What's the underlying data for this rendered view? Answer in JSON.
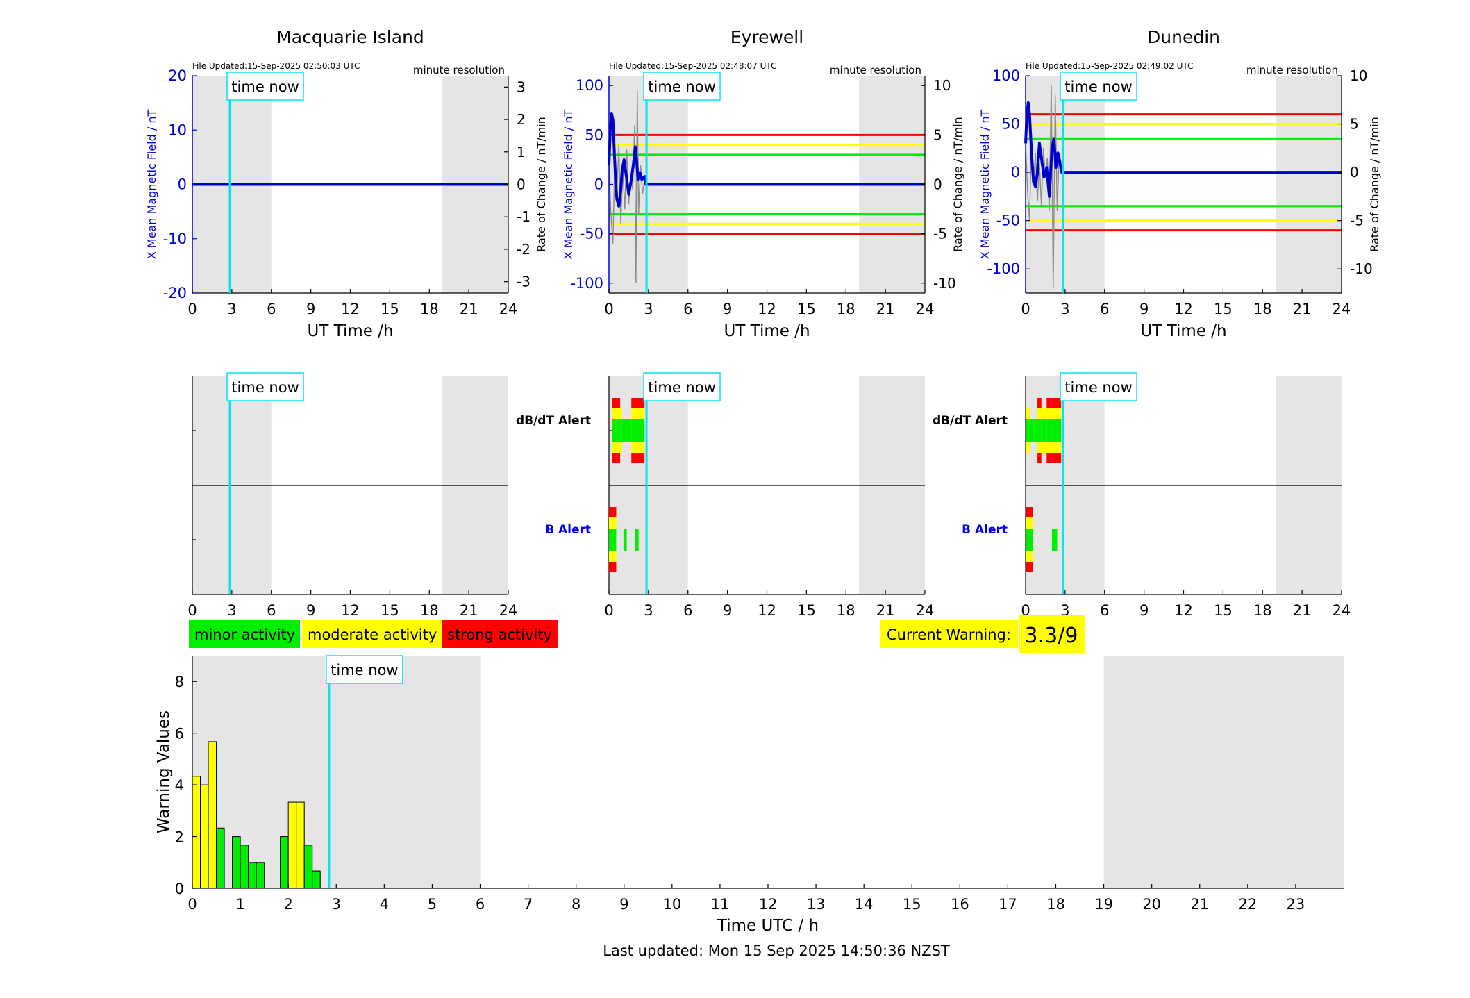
{
  "page": {
    "footer": "Last updated: Mon 15 Sep 2025 14:50:36 NZST",
    "now_label": "time now",
    "colors": {
      "minor": "#00ee00",
      "moderate": "#ffff00",
      "strong": "#ff0000",
      "field": "#0000cc",
      "night": "#e5e5e5",
      "now": "#00e5ee",
      "grey": "#8a8a8a"
    }
  },
  "legend": {
    "items": [
      {
        "label": "minor activity",
        "color": "#00ee00"
      },
      {
        "label": "moderate activity",
        "color": "#ffff00"
      },
      {
        "label": "strong activity",
        "color": "#ff0000"
      }
    ]
  },
  "current_warning": {
    "label": "Current Warning:",
    "value": "3.3/9"
  },
  "stations": [
    {
      "name": "Macquarie Island",
      "file_updated": "File Updated:15-Sep-2025 02:50:03 UTC",
      "resolution": "minute resolution",
      "ylabel_left": "X Mean Magnetic Field / nT",
      "ylabel_right": "Rate of Change / nT/min",
      "xlabel": "UT Time /h",
      "ylim_left": [
        -20,
        20
      ],
      "yticks_left": [
        -20,
        -10,
        0,
        10,
        20
      ],
      "ylim_right": [
        -3.35,
        3.35
      ],
      "yticks_right": [
        -3,
        -2,
        -1,
        0,
        1,
        2,
        3
      ],
      "thresholds": [],
      "field_trace": [
        [
          0,
          0
        ],
        [
          24,
          0
        ]
      ],
      "rate_trace": [],
      "dbdt_alert": [],
      "b_alert": []
    },
    {
      "name": "Eyrewell",
      "file_updated": "File Updated:15-Sep-2025 02:48:07 UTC",
      "resolution": "minute resolution",
      "ylabel_left": "X Mean Magnetic Field / nT",
      "ylabel_right": "Rate of Change / nT/min",
      "xlabel": "UT Time /h",
      "ylim_left": [
        -110,
        110
      ],
      "yticks_left": [
        -100,
        -50,
        0,
        50,
        100
      ],
      "ylim_right": [
        -11,
        11
      ],
      "yticks_right": [
        -10,
        -5,
        0,
        5,
        10
      ],
      "thresholds": [
        {
          "value": 50,
          "color": "#ff0000"
        },
        {
          "value": 40,
          "color": "#ffff00"
        },
        {
          "value": 30,
          "color": "#00ee00"
        },
        {
          "value": -30,
          "color": "#00ee00"
        },
        {
          "value": -40,
          "color": "#ffff00"
        },
        {
          "value": -50,
          "color": "#ff0000"
        }
      ],
      "field_trace": [
        [
          0,
          20
        ],
        [
          0.1,
          55
        ],
        [
          0.2,
          72
        ],
        [
          0.3,
          65
        ],
        [
          0.4,
          35
        ],
        [
          0.5,
          5
        ],
        [
          0.6,
          -15
        ],
        [
          0.75,
          -22
        ],
        [
          0.9,
          -5
        ],
        [
          1.0,
          15
        ],
        [
          1.15,
          25
        ],
        [
          1.3,
          10
        ],
        [
          1.5,
          -10
        ],
        [
          1.7,
          5
        ],
        [
          1.85,
          20
        ],
        [
          2.0,
          38
        ],
        [
          2.1,
          25
        ],
        [
          2.2,
          5
        ],
        [
          2.35,
          12
        ],
        [
          2.5,
          5
        ],
        [
          2.7,
          8
        ],
        [
          2.8,
          0
        ],
        [
          24,
          0
        ]
      ],
      "rate_trace": [
        [
          0,
          20
        ],
        [
          0.15,
          -30
        ],
        [
          0.3,
          -60
        ],
        [
          0.45,
          30
        ],
        [
          0.6,
          -10
        ],
        [
          0.75,
          40
        ],
        [
          0.9,
          -40
        ],
        [
          1.05,
          15
        ],
        [
          1.2,
          -25
        ],
        [
          1.35,
          35
        ],
        [
          1.5,
          -20
        ],
        [
          1.65,
          10
        ],
        [
          1.8,
          -5
        ],
        [
          1.95,
          60
        ],
        [
          2.05,
          -100
        ],
        [
          2.15,
          95
        ],
        [
          2.25,
          -30
        ],
        [
          2.4,
          20
        ],
        [
          2.55,
          -10
        ],
        [
          2.7,
          5
        ]
      ],
      "dbdt_alert": [
        {
          "start": 0.25,
          "end": 0.55,
          "level": 3
        },
        {
          "start": 0.55,
          "end": 0.85,
          "level": 3
        },
        {
          "start": 0.85,
          "end": 1.0,
          "level": 2
        },
        {
          "start": 1.0,
          "end": 1.7,
          "level": 1
        },
        {
          "start": 1.7,
          "end": 2.0,
          "level": 3
        },
        {
          "start": 2.0,
          "end": 2.7,
          "level": 3
        }
      ],
      "b_alert": [
        {
          "start": 0.0,
          "end": 0.55,
          "level": 3
        },
        {
          "start": 1.1,
          "end": 1.35,
          "level": 1
        },
        {
          "start": 2.0,
          "end": 2.25,
          "level": 1
        }
      ]
    },
    {
      "name": "Dunedin",
      "file_updated": "File Updated:15-Sep-2025 02:49:02 UTC",
      "resolution": "minute resolution",
      "ylabel_left": "X Mean Magnetic Field / nT",
      "ylabel_right": "Rate of Change / nT/min",
      "xlabel": "UT Time /h",
      "ylim_left": [
        -125,
        100
      ],
      "yticks_left": [
        -100,
        -50,
        0,
        50,
        100
      ],
      "ylim_right": [
        -12.5,
        10
      ],
      "yticks_right": [
        -10,
        -5,
        0,
        5,
        10
      ],
      "thresholds": [
        {
          "value": 60,
          "color": "#ff0000"
        },
        {
          "value": 50,
          "color": "#ffff00"
        },
        {
          "value": 35,
          "color": "#00ee00"
        },
        {
          "value": -35,
          "color": "#00ee00"
        },
        {
          "value": -50,
          "color": "#ffff00"
        },
        {
          "value": -60,
          "color": "#ff0000"
        }
      ],
      "field_trace": [
        [
          0,
          30
        ],
        [
          0.1,
          60
        ],
        [
          0.2,
          72
        ],
        [
          0.3,
          60
        ],
        [
          0.45,
          20
        ],
        [
          0.6,
          -10
        ],
        [
          0.75,
          -15
        ],
        [
          0.9,
          0
        ],
        [
          1.05,
          30
        ],
        [
          1.2,
          15
        ],
        [
          1.4,
          -5
        ],
        [
          1.6,
          5
        ],
        [
          1.8,
          -25
        ],
        [
          2.0,
          25
        ],
        [
          2.15,
          35
        ],
        [
          2.3,
          5
        ],
        [
          2.45,
          20
        ],
        [
          2.6,
          10
        ],
        [
          2.75,
          0
        ],
        [
          24,
          0
        ]
      ],
      "rate_trace": [
        [
          0,
          30
        ],
        [
          0.15,
          -20
        ],
        [
          0.3,
          -50
        ],
        [
          0.45,
          40
        ],
        [
          0.6,
          -10
        ],
        [
          0.75,
          20
        ],
        [
          0.9,
          -30
        ],
        [
          1.05,
          10
        ],
        [
          1.2,
          -35
        ],
        [
          1.35,
          25
        ],
        [
          1.5,
          -5
        ],
        [
          1.65,
          15
        ],
        [
          1.8,
          -40
        ],
        [
          1.95,
          90
        ],
        [
          2.1,
          -120
        ],
        [
          2.25,
          80
        ],
        [
          2.4,
          -40
        ],
        [
          2.55,
          20
        ],
        [
          2.7,
          10
        ]
      ],
      "dbdt_alert": [
        {
          "start": 0.0,
          "end": 0.35,
          "level": 2
        },
        {
          "start": 0.35,
          "end": 0.6,
          "level": 1
        },
        {
          "start": 0.6,
          "end": 0.9,
          "level": 1
        },
        {
          "start": 0.9,
          "end": 1.2,
          "level": 3
        },
        {
          "start": 1.2,
          "end": 1.6,
          "level": 2
        },
        {
          "start": 1.6,
          "end": 2.0,
          "level": 3
        },
        {
          "start": 2.0,
          "end": 2.7,
          "level": 3
        }
      ],
      "b_alert": [
        {
          "start": 0.0,
          "end": 0.55,
          "level": 3
        },
        {
          "start": 2.0,
          "end": 2.4,
          "level": 1
        }
      ]
    }
  ],
  "alert_labels": {
    "dbdt": "dB/dT Alert",
    "b": "B Alert"
  },
  "top_xticks": [
    0,
    3,
    6,
    9,
    12,
    15,
    18,
    21,
    24
  ],
  "time_now_utc": 2.85,
  "night_shading": [
    [
      0,
      6
    ],
    [
      19,
      24
    ]
  ],
  "chart_data": {
    "type": "bar",
    "xlabel": "Time UTC / h",
    "ylabel": "Warning Values",
    "xlim": [
      0,
      24
    ],
    "ylim": [
      0,
      9
    ],
    "yticks": [
      0,
      2,
      4,
      6,
      8
    ],
    "xticks": [
      0,
      1,
      2,
      3,
      4,
      5,
      6,
      7,
      8,
      9,
      10,
      11,
      12,
      13,
      14,
      15,
      16,
      17,
      18,
      19,
      20,
      21,
      22,
      23
    ],
    "bar_width_h": 0.1667,
    "x": [
      0.0833,
      0.25,
      0.4167,
      0.5833,
      0.75,
      0.9167,
      1.0833,
      1.25,
      1.4167,
      1.5833,
      1.75,
      1.9167,
      2.0833,
      2.25,
      2.4167,
      2.5833
    ],
    "values": [
      4.33,
      4.0,
      5.67,
      2.33,
      0,
      2.0,
      1.67,
      1.0,
      1.0,
      0,
      0,
      2.0,
      3.33,
      3.33,
      1.67,
      0.67
    ],
    "bar_colors": [
      "#ffff00",
      "#ffff00",
      "#ffff00",
      "#00ee00",
      "#00ee00",
      "#00ee00",
      "#00ee00",
      "#00ee00",
      "#00ee00",
      "#00ee00",
      "#00ee00",
      "#00ee00",
      "#ffff00",
      "#ffff00",
      "#00ee00",
      "#00ee00"
    ]
  }
}
